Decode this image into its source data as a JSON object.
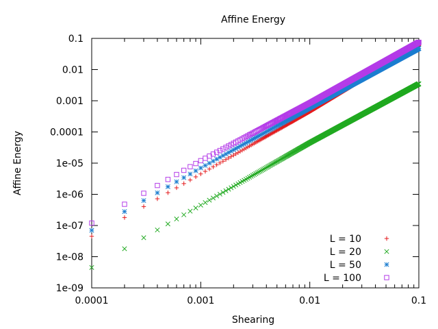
{
  "chart_data": {
    "type": "scatter",
    "title": "Affine Energy",
    "xlabel": "Shearing",
    "ylabel": "Affine Energy",
    "xscale": "log",
    "yscale": "log",
    "xlim": [
      0.0001,
      0.1
    ],
    "ylim": [
      1e-09,
      0.1
    ],
    "grid": false,
    "legend_position": "bottom-right",
    "x_ticks": [
      {
        "value": 0.0001,
        "label": "0.0001"
      },
      {
        "value": 0.001,
        "label": "0.001"
      },
      {
        "value": 0.01,
        "label": "0.01"
      },
      {
        "value": 0.1,
        "label": "0.1"
      }
    ],
    "y_ticks": [
      {
        "value": 1e-09,
        "label": "1e-09"
      },
      {
        "value": 1e-08,
        "label": "1e-08"
      },
      {
        "value": 1e-07,
        "label": "1e-07"
      },
      {
        "value": 1e-06,
        "label": "1e-06"
      },
      {
        "value": 1e-05,
        "label": "1e-05"
      },
      {
        "value": 0.0001,
        "label": "0.0001"
      },
      {
        "value": 0.001,
        "label": "0.001"
      },
      {
        "value": 0.01,
        "label": "0.01"
      },
      {
        "value": 0.1,
        "label": "0.1"
      }
    ],
    "x_sampling": {
      "start": 0.0001,
      "step": 0.0001,
      "end": 0.1
    },
    "series": [
      {
        "name": "L = 10",
        "marker": "plus",
        "color": "#e41a1c",
        "points": [
          [
            0.0001,
            4.5e-08
          ],
          [
            0.001,
            4.5e-06
          ],
          [
            0.01,
            0.00045
          ],
          [
            0.1,
            0.06
          ]
        ]
      },
      {
        "name": "L = 20",
        "marker": "cross",
        "color": "#22aa22",
        "points": [
          [
            0.0001,
            4.5e-09
          ],
          [
            0.001,
            4.5e-07
          ],
          [
            0.01,
            4.5e-05
          ],
          [
            0.1,
            0.0035
          ]
        ]
      },
      {
        "name": "L = 50",
        "marker": "star",
        "color": "#1e7fd0",
        "points": [
          [
            0.0001,
            7e-08
          ],
          [
            0.001,
            7e-06
          ],
          [
            0.01,
            0.0006
          ],
          [
            0.1,
            0.048
          ]
        ]
      },
      {
        "name": "L = 100",
        "marker": "square",
        "color": "#b43ce8",
        "points": [
          [
            0.0001,
            1.2e-07
          ],
          [
            0.001,
            1.2e-05
          ],
          [
            0.01,
            0.00085
          ],
          [
            0.1,
            0.075
          ]
        ]
      }
    ]
  }
}
